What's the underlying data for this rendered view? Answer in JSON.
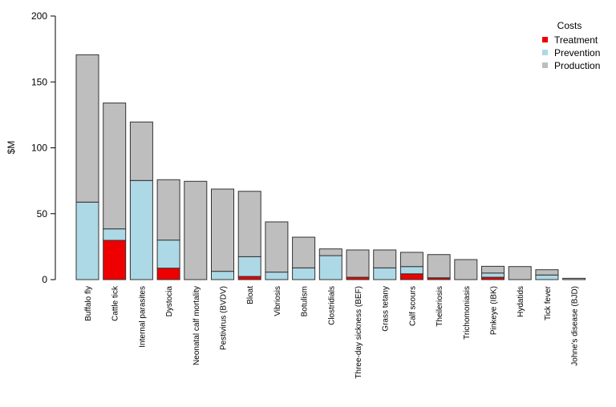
{
  "chart_data": {
    "type": "bar",
    "stacked": true,
    "title": "",
    "xlabel": "",
    "ylabel": "$M",
    "ylim": [
      0,
      200
    ],
    "yticks": [
      0,
      50,
      100,
      150,
      200
    ],
    "grid": false,
    "legend": {
      "title": "Costs",
      "placement": "top-right"
    },
    "categories": [
      "Buffalo fly",
      "Cattle tick",
      "Internal parasites",
      "Dystocia",
      "Neonatal calf mortality",
      "Pestivirus (BVDV)",
      "Bloat",
      "Vibriosis",
      "Botulism",
      "Clostridials",
      "Three-day sickness (BEF)",
      "Grass tetany",
      "Calf scours",
      "Theileriosis",
      "Trichomoniasis",
      "Pinkeye (IBK)",
      "Hydatids",
      "Tick fever",
      "Johne's disease (BJD)"
    ],
    "series": [
      {
        "name": "Treatment",
        "color": "#ee0000",
        "values": [
          0,
          29.8,
          0,
          8.7,
          0,
          0,
          2.4,
          0,
          0,
          0,
          1.8,
          0,
          4.4,
          1.4,
          0,
          1.8,
          0,
          0,
          0
        ]
      },
      {
        "name": "Prevention",
        "color": "#add8e6",
        "values": [
          58.8,
          8.7,
          75.2,
          21.3,
          0,
          6.3,
          15.0,
          5.7,
          8.9,
          18.2,
          0,
          8.9,
          5.5,
          0,
          0,
          3.2,
          0,
          3.5,
          0
        ]
      },
      {
        "name": "Production",
        "color": "#bebebe",
        "values": [
          111.8,
          95.5,
          44.4,
          45.8,
          74.6,
          62.4,
          49.6,
          38.1,
          23.3,
          5.1,
          20.7,
          13.6,
          10.8,
          17.6,
          15.2,
          5.1,
          9.9,
          4.0,
          1.0
        ]
      }
    ]
  }
}
